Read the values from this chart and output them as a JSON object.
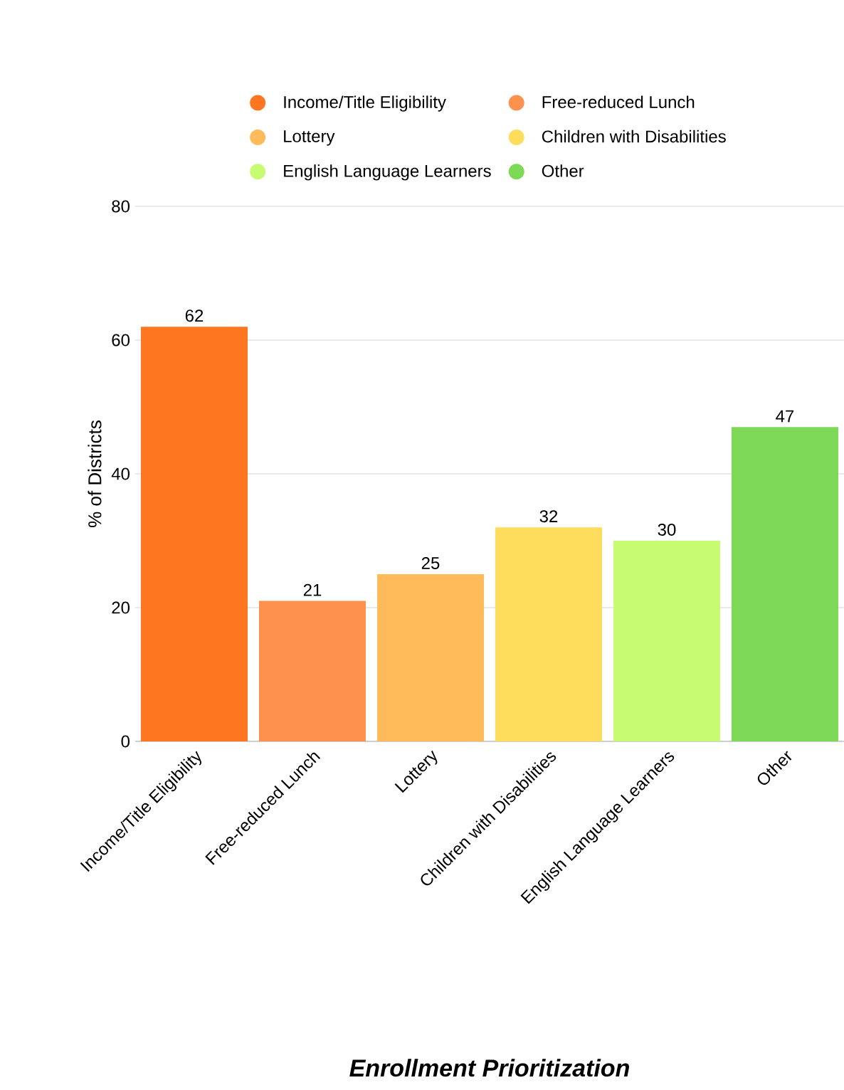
{
  "chart_data": {
    "type": "bar",
    "title": "Enrollment Prioritization",
    "ylabel": "% of Districts",
    "categories": [
      "Income/Title Eligibility",
      "Free-reduced Lunch",
      "Lottery",
      "Children with Disabilities",
      "English Language Learners",
      "Other"
    ],
    "series": [
      {
        "name": "Income/Title Eligibility",
        "color": "#ff7620",
        "values": [
          62,
          null,
          null,
          null,
          null,
          null
        ]
      },
      {
        "name": "Free-reduced Lunch",
        "color": "#ff914f",
        "values": [
          null,
          21,
          null,
          null,
          null,
          null
        ]
      },
      {
        "name": "Lottery",
        "color": "#ffbb5a",
        "values": [
          null,
          null,
          25,
          null,
          null,
          null
        ]
      },
      {
        "name": "Children with Disabilities",
        "color": "#ffdd5c",
        "values": [
          null,
          null,
          null,
          32,
          null,
          null
        ]
      },
      {
        "name": "English Language Learners",
        "color": "#c6fb72",
        "values": [
          null,
          null,
          null,
          null,
          30,
          null
        ]
      },
      {
        "name": "Other",
        "color": "#7ed957",
        "values": [
          null,
          null,
          null,
          null,
          null,
          47
        ]
      }
    ],
    "ylim": [
      0,
      80
    ],
    "yticks": [
      0,
      20,
      40,
      60,
      80
    ],
    "grid": "y",
    "legend": "top",
    "marker": "circle",
    "data_labels": true
  }
}
